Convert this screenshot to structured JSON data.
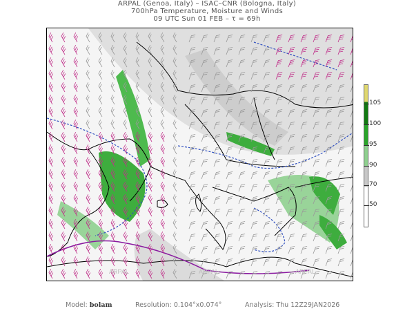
{
  "header": {
    "line1": "ARPAL (Genoa, Italy)  –  ISAC–CNR (Bologna, Italy)",
    "line2": "700hPa Temperature, Moisture and Winds",
    "line3": "09 UTC Sun 01 FEB  –  τ = 69h"
  },
  "map": {
    "watermark": "ARPAL",
    "region": "Europe / Mediterranean",
    "fields": [
      "relative humidity shading",
      "temperature isotherms (dashed blue)",
      "wind barbs (magenta / grey)",
      "coastlines and borders"
    ],
    "colors": {
      "humidity_high": "#1a9a1a",
      "humidity_mid": "#8fd08f",
      "humidity_low": "#cccccc",
      "isotherm": "#3050c0",
      "wind_barb": "#c0308a",
      "freezing_line": "#8a1aa0"
    }
  },
  "colorbar": {
    "labels": [
      "105",
      "100",
      "95",
      "90",
      "70",
      "50"
    ],
    "colors": [
      "#e0d870",
      "#127a12",
      "#2aa52a",
      "#8fd08f",
      "#c8c8c8",
      "#ffffff"
    ]
  },
  "footer": {
    "model_label": "Model:",
    "model_value": "bolam",
    "resolution": "Resolution: 0.104°x0.074°",
    "analysis": "Analysis: Thu  12Z29JAN2026"
  }
}
